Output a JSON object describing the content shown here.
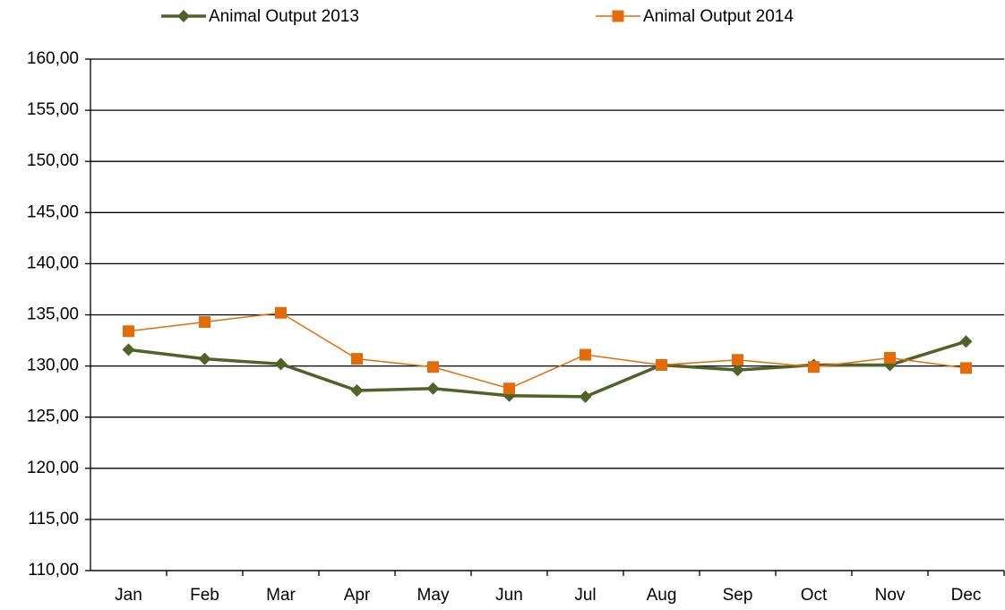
{
  "chart_data": {
    "type": "line",
    "categories": [
      "Jan",
      "Feb",
      "Mar",
      "Apr",
      "May",
      "Jun",
      "Jul",
      "Aug",
      "Sep",
      "Oct",
      "Nov",
      "Dec"
    ],
    "series": [
      {
        "name": "Animal Output 2013",
        "color": "#4f6228",
        "marker": "diamond",
        "values": [
          131.6,
          130.7,
          130.2,
          127.6,
          127.8,
          127.1,
          127.0,
          130.1,
          129.6,
          130.1,
          130.1,
          132.4
        ]
      },
      {
        "name": "Animal Output 2014",
        "color": "#e36c09",
        "marker": "square",
        "values": [
          133.4,
          134.3,
          135.2,
          130.7,
          129.9,
          127.8,
          131.1,
          130.1,
          130.6,
          129.9,
          130.8,
          129.8
        ]
      }
    ],
    "ylim": [
      110,
      160
    ],
    "yticks": [
      {
        "value": 110,
        "label": "110,00"
      },
      {
        "value": 115,
        "label": "115,00"
      },
      {
        "value": 120,
        "label": "120,00"
      },
      {
        "value": 125,
        "label": "125,00"
      },
      {
        "value": 130,
        "label": "130,00"
      },
      {
        "value": 135,
        "label": "135,00"
      },
      {
        "value": 140,
        "label": "140,00"
      },
      {
        "value": 145,
        "label": "145,00"
      },
      {
        "value": 150,
        "label": "150,00"
      },
      {
        "value": 155,
        "label": "155,00"
      },
      {
        "value": 160,
        "label": "160,00"
      }
    ],
    "grid": true,
    "legend": "top"
  }
}
